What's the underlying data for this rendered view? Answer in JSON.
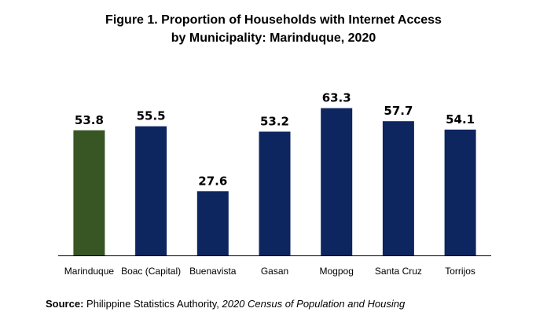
{
  "chart_data": {
    "type": "bar",
    "title_line1": "Figure 1. Proportion of Households with Internet Access",
    "title_line2": "by Municipality: Marinduque, 2020",
    "categories": [
      "Marinduque",
      "Boac (Capital)",
      "Buenavista",
      "Gasan",
      "Mogpog",
      "Santa Cruz",
      "Torrijos"
    ],
    "values": [
      53.8,
      55.5,
      27.6,
      53.2,
      63.3,
      57.7,
      54.1
    ],
    "value_labels": [
      "53.8",
      "55.5",
      "27.6",
      "53.2",
      "63.3",
      "57.7",
      "54.1"
    ],
    "ylim": [
      0,
      70
    ],
    "grid": false,
    "legend": "none",
    "xlabel": "",
    "ylabel": "",
    "colors": {
      "province": "#375623",
      "municipality": "#0d2660",
      "axis": "#000000"
    }
  },
  "source": {
    "label": "Source:",
    "text": " Philippine Statistics Authority, ",
    "title": "2020 Census of Population and Housing"
  }
}
